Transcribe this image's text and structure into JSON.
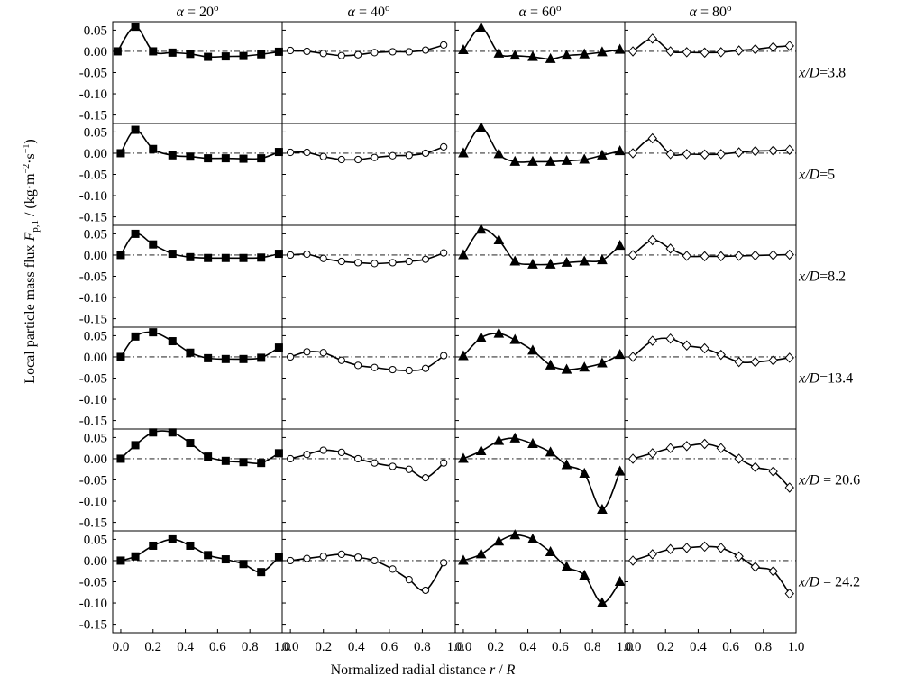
{
  "chart_data": {
    "type": "line",
    "xlabel": "Normalized radial distance r / R",
    "ylabel": "Local particle mass flux F p,1 / (kg·m⁻²·s⁻¹)",
    "ylabel_parts": {
      "main": "Local particle mass flux ",
      "var": "F",
      "sub": "p,1",
      "unit_open": " / (kg·m",
      "exp1": "−2",
      "unit_mid": "·s",
      "exp2": "−1",
      "unit_close": ")"
    },
    "xlim": [
      -0.05,
      1.0
    ],
    "ylim": [
      -0.17,
      0.07
    ],
    "x_ticks": [
      "0.0",
      "0.2",
      "0.4",
      "0.6",
      "0.8",
      "1.0"
    ],
    "x_tick_values": [
      0.0,
      0.2,
      0.4,
      0.6,
      0.8,
      1.0
    ],
    "y_ticks": [
      "0.05",
      "0.00",
      "-0.05",
      "-0.10",
      "-0.15"
    ],
    "y_tick_values": [
      0.05,
      0.0,
      -0.05,
      -0.1,
      -0.15
    ],
    "zero_reference_line": true,
    "grid": false,
    "columns": [
      {
        "label": "α = 20°",
        "label_var": "α",
        "label_rest": " = 20",
        "label_deg": "o",
        "marker": "filled-square"
      },
      {
        "label": "α = 40°",
        "label_var": "α",
        "label_rest": " = 40",
        "label_deg": "o",
        "marker": "open-circle"
      },
      {
        "label": "α = 60°",
        "label_var": "α",
        "label_rest": " = 60",
        "label_deg": "o",
        "marker": "filled-triangle"
      },
      {
        "label": "α = 80°",
        "label_var": "α",
        "label_rest": " = 80",
        "label_deg": "o",
        "marker": "open-diamond"
      }
    ],
    "rows": [
      {
        "label": "x/D=3.8",
        "label_var": "x/D",
        "label_rest": "=3.8"
      },
      {
        "label": "x/D=5",
        "label_var": "x/D",
        "label_rest": "=5"
      },
      {
        "label": "x/D=8.2",
        "label_var": "x/D",
        "label_rest": "=8.2"
      },
      {
        "label": "x/D=13.4",
        "label_var": "x/D",
        "label_rest": "=13.4"
      },
      {
        "label": "x/D = 20.6",
        "label_var": "x/D",
        "label_rest": " = 20.6"
      },
      {
        "label": "x/D = 24.2",
        "label_var": "x/D",
        "label_rest": " = 24.2"
      }
    ],
    "panels": [
      [
        {
          "x": [
            -0.02,
            0.09,
            0.2,
            0.32,
            0.43,
            0.54,
            0.65,
            0.76,
            0.87,
            0.98
          ],
          "y": [
            0.0,
            0.058,
            0.0,
            -0.003,
            -0.006,
            -0.013,
            -0.012,
            -0.011,
            -0.007,
            -0.001
          ]
        },
        {
          "x": [
            0.0,
            0.1,
            0.2,
            0.31,
            0.41,
            0.51,
            0.62,
            0.72,
            0.82,
            0.93
          ],
          "y": [
            0.002,
            0.0,
            -0.005,
            -0.01,
            -0.008,
            -0.003,
            -0.001,
            -0.001,
            0.003,
            0.015
          ]
        },
        {
          "x": [
            0.0,
            0.11,
            0.22,
            0.32,
            0.43,
            0.54,
            0.64,
            0.75,
            0.86,
            0.97
          ],
          "y": [
            0.003,
            0.055,
            -0.005,
            -0.01,
            -0.013,
            -0.018,
            -0.01,
            -0.007,
            -0.002,
            0.004
          ]
        },
        {
          "x": [
            0.0,
            0.12,
            0.23,
            0.33,
            0.44,
            0.54,
            0.65,
            0.75,
            0.86,
            0.96
          ],
          "y": [
            0.0,
            0.03,
            0.0,
            -0.002,
            -0.003,
            -0.002,
            0.002,
            0.005,
            0.01,
            0.013
          ]
        }
      ],
      [
        {
          "x": [
            0.0,
            0.09,
            0.2,
            0.32,
            0.43,
            0.54,
            0.65,
            0.76,
            0.87,
            0.98
          ],
          "y": [
            0.0,
            0.055,
            0.01,
            -0.005,
            -0.008,
            -0.012,
            -0.012,
            -0.013,
            -0.012,
            0.003
          ]
        },
        {
          "x": [
            0.0,
            0.1,
            0.2,
            0.31,
            0.41,
            0.51,
            0.62,
            0.72,
            0.82,
            0.93
          ],
          "y": [
            0.002,
            0.002,
            -0.008,
            -0.015,
            -0.015,
            -0.01,
            -0.006,
            -0.005,
            0.0,
            0.015
          ]
        },
        {
          "x": [
            0.0,
            0.11,
            0.22,
            0.32,
            0.43,
            0.54,
            0.64,
            0.75,
            0.86,
            0.97
          ],
          "y": [
            0.0,
            0.06,
            -0.002,
            -0.02,
            -0.02,
            -0.02,
            -0.018,
            -0.015,
            -0.005,
            0.005
          ]
        },
        {
          "x": [
            0.0,
            0.12,
            0.23,
            0.33,
            0.44,
            0.54,
            0.65,
            0.75,
            0.86,
            0.96
          ],
          "y": [
            0.0,
            0.035,
            -0.002,
            -0.002,
            -0.003,
            -0.002,
            0.002,
            0.005,
            0.006,
            0.008
          ]
        }
      ],
      [
        {
          "x": [
            0.0,
            0.09,
            0.2,
            0.32,
            0.43,
            0.54,
            0.65,
            0.76,
            0.87,
            0.98
          ],
          "y": [
            0.0,
            0.05,
            0.025,
            0.003,
            -0.005,
            -0.007,
            -0.007,
            -0.007,
            -0.006,
            0.003
          ]
        },
        {
          "x": [
            0.0,
            0.1,
            0.2,
            0.31,
            0.41,
            0.51,
            0.62,
            0.72,
            0.82,
            0.93
          ],
          "y": [
            0.0,
            0.002,
            -0.008,
            -0.015,
            -0.018,
            -0.02,
            -0.018,
            -0.015,
            -0.01,
            0.005
          ]
        },
        {
          "x": [
            0.0,
            0.11,
            0.22,
            0.32,
            0.43,
            0.54,
            0.64,
            0.75,
            0.86,
            0.97
          ],
          "y": [
            0.0,
            0.06,
            0.035,
            -0.015,
            -0.022,
            -0.022,
            -0.018,
            -0.015,
            -0.012,
            0.022
          ]
        },
        {
          "x": [
            0.0,
            0.12,
            0.23,
            0.33,
            0.44,
            0.54,
            0.65,
            0.75,
            0.86,
            0.96
          ],
          "y": [
            0.0,
            0.035,
            0.015,
            -0.002,
            -0.003,
            -0.003,
            -0.002,
            -0.001,
            0.0,
            0.001
          ]
        }
      ],
      [
        {
          "x": [
            0.0,
            0.09,
            0.2,
            0.32,
            0.43,
            0.54,
            0.65,
            0.76,
            0.87,
            0.98
          ],
          "y": [
            0.0,
            0.048,
            0.058,
            0.037,
            0.01,
            -0.003,
            -0.005,
            -0.005,
            -0.002,
            0.022
          ]
        },
        {
          "x": [
            0.0,
            0.1,
            0.2,
            0.31,
            0.41,
            0.51,
            0.62,
            0.72,
            0.82,
            0.93
          ],
          "y": [
            0.0,
            0.012,
            0.01,
            -0.008,
            -0.02,
            -0.025,
            -0.03,
            -0.032,
            -0.027,
            0.003
          ]
        },
        {
          "x": [
            0.0,
            0.11,
            0.22,
            0.32,
            0.43,
            0.54,
            0.64,
            0.75,
            0.86,
            0.97
          ],
          "y": [
            0.002,
            0.045,
            0.055,
            0.04,
            0.015,
            -0.02,
            -0.03,
            -0.025,
            -0.015,
            0.005
          ]
        },
        {
          "x": [
            0.0,
            0.12,
            0.23,
            0.33,
            0.44,
            0.54,
            0.65,
            0.75,
            0.86,
            0.96
          ],
          "y": [
            0.0,
            0.038,
            0.043,
            0.027,
            0.02,
            0.005,
            -0.012,
            -0.012,
            -0.008,
            -0.002
          ]
        }
      ],
      [
        {
          "x": [
            0.0,
            0.09,
            0.2,
            0.32,
            0.43,
            0.54,
            0.65,
            0.76,
            0.87,
            0.98
          ],
          "y": [
            0.0,
            0.032,
            0.062,
            0.062,
            0.037,
            0.005,
            -0.005,
            -0.008,
            -0.01,
            0.013
          ]
        },
        {
          "x": [
            0.0,
            0.1,
            0.2,
            0.31,
            0.41,
            0.51,
            0.62,
            0.72,
            0.82,
            0.93
          ],
          "y": [
            0.0,
            0.01,
            0.02,
            0.015,
            0.0,
            -0.01,
            -0.018,
            -0.025,
            -0.045,
            -0.01
          ]
        },
        {
          "x": [
            0.0,
            0.11,
            0.22,
            0.32,
            0.43,
            0.54,
            0.64,
            0.75,
            0.86,
            0.97
          ],
          "y": [
            0.0,
            0.018,
            0.042,
            0.048,
            0.035,
            0.015,
            -0.015,
            -0.035,
            -0.12,
            -0.03
          ]
        },
        {
          "x": [
            0.0,
            0.12,
            0.23,
            0.33,
            0.44,
            0.54,
            0.65,
            0.75,
            0.86,
            0.96
          ],
          "y": [
            0.0,
            0.013,
            0.025,
            0.03,
            0.035,
            0.025,
            0.0,
            -0.02,
            -0.03,
            -0.068
          ]
        }
      ],
      [
        {
          "x": [
            0.0,
            0.09,
            0.2,
            0.32,
            0.43,
            0.54,
            0.65,
            0.76,
            0.87,
            0.98
          ],
          "y": [
            0.0,
            0.01,
            0.035,
            0.05,
            0.035,
            0.013,
            0.003,
            -0.008,
            -0.027,
            0.008
          ]
        },
        {
          "x": [
            0.0,
            0.1,
            0.2,
            0.31,
            0.41,
            0.51,
            0.62,
            0.72,
            0.82,
            0.93
          ],
          "y": [
            0.0,
            0.005,
            0.01,
            0.015,
            0.008,
            0.0,
            -0.02,
            -0.045,
            -0.07,
            -0.005
          ]
        },
        {
          "x": [
            0.0,
            0.11,
            0.22,
            0.32,
            0.43,
            0.54,
            0.64,
            0.75,
            0.86,
            0.97
          ],
          "y": [
            0.0,
            0.015,
            0.045,
            0.06,
            0.05,
            0.02,
            -0.015,
            -0.035,
            -0.1,
            -0.05
          ]
        },
        {
          "x": [
            0.0,
            0.12,
            0.23,
            0.33,
            0.44,
            0.54,
            0.65,
            0.75,
            0.86,
            0.96
          ],
          "y": [
            0.0,
            0.015,
            0.027,
            0.03,
            0.033,
            0.03,
            0.01,
            -0.015,
            -0.025,
            -0.078
          ]
        }
      ]
    ]
  }
}
